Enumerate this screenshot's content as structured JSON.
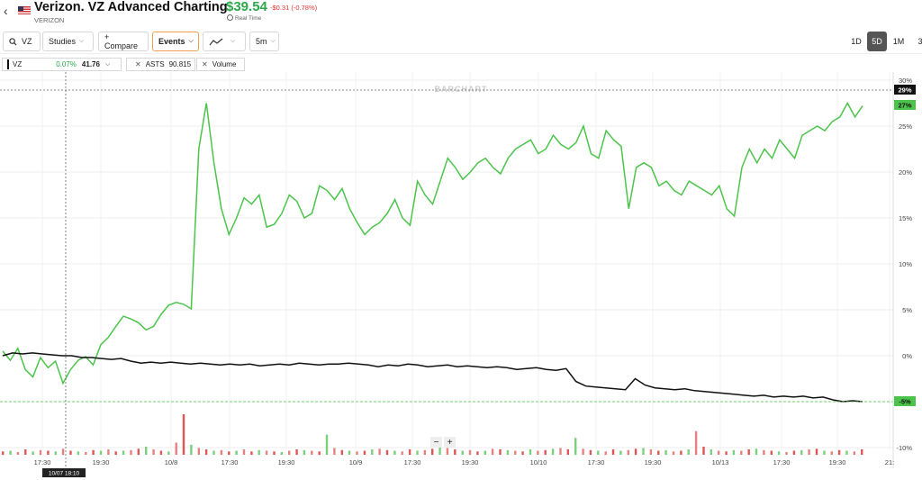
{
  "header": {
    "back_icon": "chevron-left-icon",
    "flag_icon": "us-flag-icon",
    "title": "Verizon. VZ Advanced Charting",
    "subtitle": "VERIZON",
    "price": "$39.54",
    "change": "-$0.31 (-0.78%)",
    "realtime": "Real Time"
  },
  "toolbar": {
    "symbol": "VZ",
    "studies": "Studies",
    "compare": "+ Compare",
    "events": "Events",
    "interval": "5m",
    "ranges": [
      "1D",
      "5D",
      "1M",
      "3"
    ],
    "selected_range": "5D"
  },
  "legend": {
    "vz_symbol": "VZ",
    "vz_pct": "0.07%",
    "vz_price": "41.76",
    "asts_symbol": "ASTS",
    "asts_price": "90.815",
    "volume": "Volume",
    "vz_color": "#111111",
    "asts_color": "#4cc44c"
  },
  "watermark": "BARCHART",
  "crosshair_label": "10/07 18:10",
  "zoom": {
    "minus": "−",
    "plus": "+"
  },
  "chart_data": {
    "type": "line",
    "y_ticks": [
      "30%",
      "25%",
      "20%",
      "15%",
      "10%",
      "5%",
      "0%",
      "-5%",
      "-10%"
    ],
    "ylim": [
      -10,
      30
    ],
    "x_ticks": [
      "17:30",
      "19:30",
      "10/8",
      "17:30",
      "19:30",
      "10/9",
      "17:30",
      "19:30",
      "10/10",
      "17:30",
      "19:30",
      "10/13",
      "17:30",
      "19:30",
      "21:"
    ],
    "last_labels": {
      "asts": "27%",
      "vz": "-5%",
      "crosshair": "29%"
    },
    "series": [
      {
        "name": "ASTS",
        "color": "#4cc44c",
        "values": [
          0.5,
          -0.5,
          0.8,
          -1.5,
          -2.3,
          -0.2,
          -1.3,
          -0.6,
          -3.0,
          -1.5,
          -0.5,
          -0.1,
          -1.0,
          1.2,
          2.0,
          3.2,
          4.3,
          4.0,
          3.6,
          2.8,
          3.2,
          4.5,
          5.5,
          5.8,
          5.6,
          5.1,
          22.5,
          27.5,
          21.0,
          16.0,
          13.2,
          15.0,
          17.2,
          16.5,
          17.5,
          14.0,
          14.3,
          15.5,
          17.5,
          16.8,
          15.0,
          15.5,
          18.5,
          18.0,
          17.0,
          18.2,
          16.0,
          14.5,
          13.2,
          14.0,
          14.5,
          15.5,
          17.0,
          15.0,
          14.2,
          19.0,
          17.5,
          16.5,
          19.0,
          21.5,
          20.5,
          19.2,
          20.0,
          21.0,
          21.5,
          20.5,
          19.8,
          21.5,
          22.5,
          23.0,
          23.5,
          22.0,
          22.5,
          24.0,
          23.0,
          22.5,
          23.2,
          25.0,
          22.0,
          21.5,
          24.5,
          23.5,
          22.8,
          16.0,
          20.5,
          21.0,
          20.5,
          18.5,
          19.0,
          18.0,
          17.5,
          19.0,
          18.5,
          18.0,
          17.5,
          18.5,
          16.0,
          15.2,
          20.5,
          22.5,
          21.0,
          22.5,
          21.5,
          23.5,
          22.5,
          21.5,
          24.0,
          24.5,
          25.0,
          24.5,
          25.5,
          26.0,
          27.5,
          26.0,
          27.2
        ]
      },
      {
        "name": "VZ",
        "color": "#111111",
        "values": [
          0.0,
          0.3,
          0.2,
          0.3,
          0.2,
          0.1,
          0.0,
          0.0,
          -0.2,
          -0.2,
          -0.3,
          -0.4,
          -0.3,
          -0.6,
          -0.8,
          -0.7,
          -0.8,
          -0.7,
          -0.8,
          -0.9,
          -0.8,
          -0.9,
          -1.0,
          -0.9,
          -1.0,
          -0.9,
          -1.1,
          -1.0,
          -0.9,
          -1.0,
          -0.8,
          -0.9,
          -1.0,
          -0.9,
          -0.9,
          -0.8,
          -0.9,
          -1.0,
          -1.2,
          -1.0,
          -1.1,
          -0.9,
          -1.0,
          -1.2,
          -1.1,
          -1.0,
          -1.2,
          -1.1,
          -1.2,
          -1.3,
          -1.2,
          -1.3,
          -1.5,
          -1.4,
          -1.3,
          -1.5,
          -1.6,
          -1.4,
          -2.8,
          -3.3,
          -3.4,
          -3.5,
          -3.6,
          -3.7,
          -2.5,
          -3.2,
          -3.5,
          -3.6,
          -3.7,
          -3.6,
          -3.8,
          -3.9,
          -4.0,
          -4.1,
          -4.2,
          -4.3,
          -4.4,
          -4.3,
          -4.5,
          -4.4,
          -4.5,
          -4.4,
          -4.6,
          -4.5,
          -4.8,
          -5.0,
          -4.9,
          -5.0
        ]
      }
    ],
    "volume": [
      5,
      6,
      4,
      8,
      5,
      7,
      6,
      5,
      9,
      6,
      5,
      4,
      7,
      6,
      8,
      5,
      6,
      7,
      9,
      12,
      8,
      6,
      5,
      18,
      60,
      15,
      10,
      8,
      6,
      7,
      5,
      6,
      8,
      5,
      7,
      6,
      5,
      4,
      6,
      8,
      7,
      6,
      5,
      30,
      10,
      7,
      6,
      5,
      6,
      8,
      9,
      7,
      6,
      5,
      8,
      6,
      7,
      9,
      22,
      10,
      8,
      6,
      7,
      5,
      6,
      9,
      8,
      7,
      6,
      5,
      8,
      6,
      7,
      9,
      10,
      8,
      25,
      9,
      7,
      6,
      5,
      8,
      6,
      7,
      9,
      10,
      8,
      6,
      7,
      5,
      6,
      8,
      35,
      12,
      8,
      6,
      5,
      7,
      6,
      8,
      9,
      7,
      6,
      5,
      4,
      6,
      7,
      8,
      9,
      6,
      5,
      7,
      6,
      5,
      8
    ]
  }
}
